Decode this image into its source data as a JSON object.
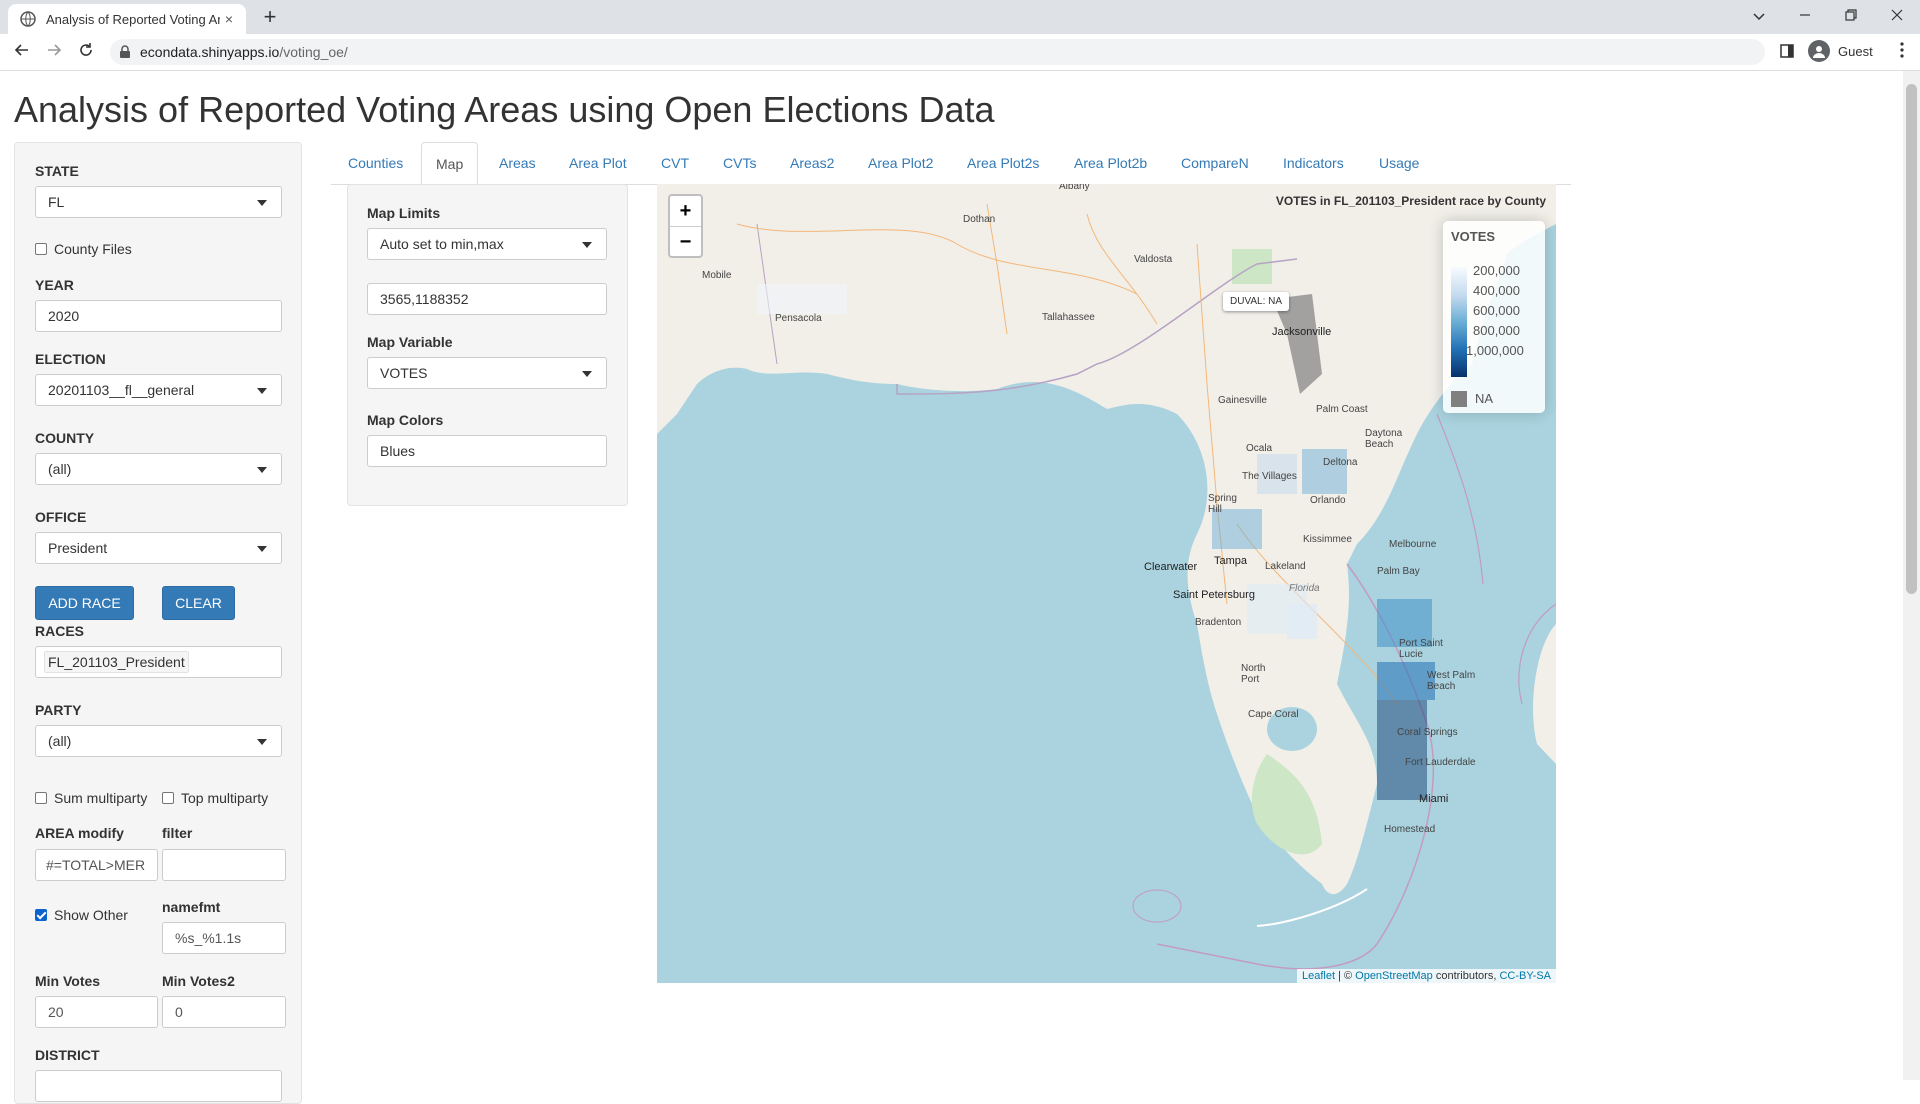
{
  "browser": {
    "tab_title": "Analysis of Reported Voting Area",
    "tab_close": "×",
    "new_tab": "+",
    "url_host": "econdata.shinyapps.io",
    "url_path": "/voting_oe/",
    "profile": "Guest"
  },
  "page": {
    "title": "Analysis of Reported Voting Areas using Open Elections Data"
  },
  "sidebar": {
    "state_label": "STATE",
    "state_value": "FL",
    "county_files_label": "County Files",
    "year_label": "YEAR",
    "year_value": "2020",
    "election_label": "ELECTION",
    "election_value": "20201103__fl__general",
    "county_label": "COUNTY",
    "county_value": "(all)",
    "office_label": "OFFICE",
    "office_value": "President",
    "add_race": "ADD RACE",
    "clear": "CLEAR",
    "races_label": "RACES",
    "races_value": "FL_201103_President",
    "party_label": "PARTY",
    "party_value": "(all)",
    "sum_multiparty": "Sum multiparty",
    "top_multiparty": "Top multiparty",
    "area_modify_label": "AREA modify",
    "area_modify_value": "#=TOTAL>MER",
    "filter_label": "filter",
    "filter_value": "",
    "show_other": "Show Other",
    "namefmt_label": "namefmt",
    "namefmt_value": "%s_%1.1s",
    "min_votes_label": "Min Votes",
    "min_votes_value": "20",
    "min_votes2_label": "Min Votes2",
    "min_votes2_value": "0",
    "district_label": "DISTRICT"
  },
  "tabs": [
    "Counties",
    "Map",
    "Areas",
    "Area Plot",
    "CVT",
    "CVTs",
    "Areas2",
    "Area Plot2",
    "Area Plot2s",
    "Area Plot2b",
    "CompareN",
    "Indicators",
    "Usage"
  ],
  "active_tab": "Map",
  "map_controls": {
    "limits_label": "Map Limits",
    "limits_value": "Auto set to min,max",
    "limits_range": "3565,1188352",
    "variable_label": "Map Variable",
    "variable_value": "VOTES",
    "colors_label": "Map Colors",
    "colors_value": "Blues"
  },
  "map": {
    "zoom_in": "+",
    "zoom_out": "−",
    "title": "VOTES in FL_201103_President race by County",
    "legend_title": "VOTES",
    "legend_ticks": [
      "200,000",
      "400,000",
      "600,000",
      "800,000",
      "1,000,000"
    ],
    "legend_na": "NA",
    "tooltip": "DUVAL: NA",
    "attrib_leaflet": "Leaflet",
    "attrib_sep": " | © ",
    "attrib_osm": "OpenStreetMap",
    "attrib_contrib": " contributors, ",
    "attrib_license": "CC-BY-SA",
    "colors": {
      "water": "#aad3df",
      "land": "#f2efe9",
      "na": "#808080"
    },
    "places": {
      "albany": "Albany",
      "dothan": "Dothan",
      "valdosta": "Valdosta",
      "mobile": "Mobile",
      "pensacola": "Pensacola",
      "tallahassee": "Tallahassee",
      "jacksonville": "Jacksonville",
      "gainesville": "Gainesville",
      "palmcoast": "Palm Coast",
      "daytona": "Daytona\nBeach",
      "ocala": "Ocala",
      "deltona": "Deltona",
      "villages": "The Villages",
      "orlando": "Orlando",
      "springhill": "Spring\nHill",
      "kissimmee": "Kissimmee",
      "melbourne": "Melbourne",
      "palmbay": "Palm Bay",
      "clearwater": "Clearwater",
      "tampa": "Tampa",
      "lakeland": "Lakeland",
      "stpete": "Saint Petersburg",
      "florida": "Florida",
      "bradenton": "Bradenton",
      "portstlucie": "Port Saint\nLucie",
      "northport": "North\nPort",
      "westpalm": "West Palm\nBeach",
      "capecoral": "Cape Coral",
      "coralsprings": "Coral Springs",
      "ftlauderdale": "Fort Lauderdale",
      "miami": "Miami",
      "homestead": "Homestead"
    }
  }
}
